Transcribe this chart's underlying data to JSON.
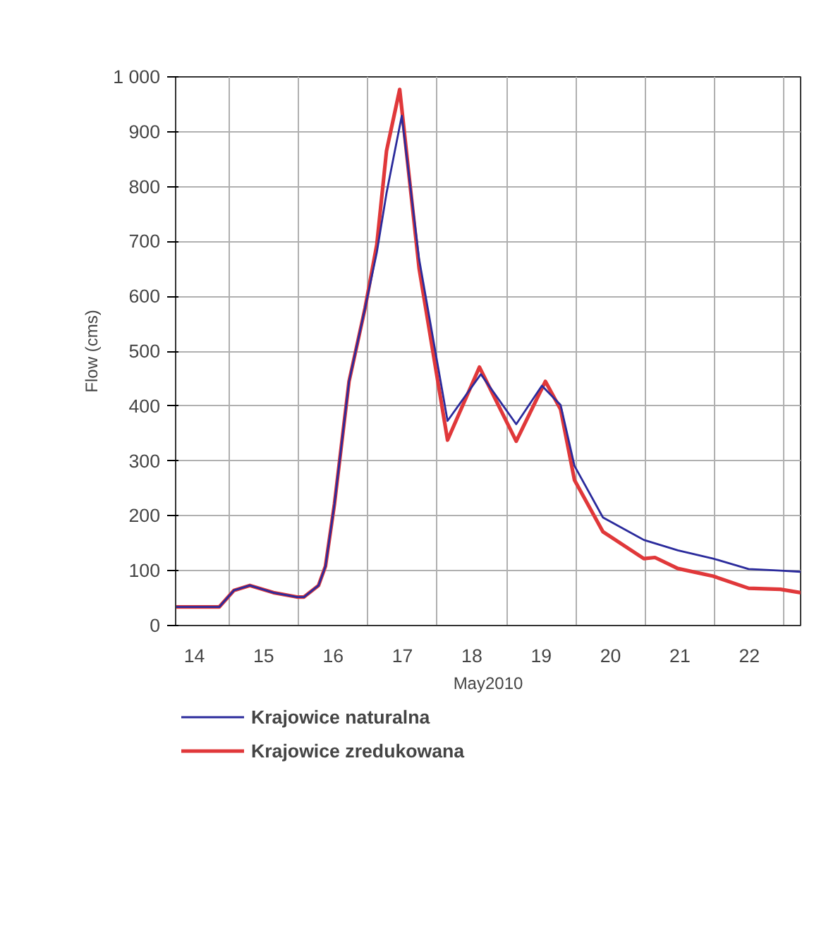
{
  "chart_data": {
    "type": "line",
    "xlabel": "May2010",
    "ylabel": "Flow (cms)",
    "xlim": [
      14.23,
      23.24
    ],
    "ylim": [
      0,
      1000
    ],
    "xticks": [
      {
        "value": 14.5,
        "label": "14"
      },
      {
        "value": 15,
        "label": null
      },
      {
        "value": 15.5,
        "label": "15"
      },
      {
        "value": 16,
        "label": null
      },
      {
        "value": 16.5,
        "label": "16"
      },
      {
        "value": 17,
        "label": null
      },
      {
        "value": 17.5,
        "label": "17"
      },
      {
        "value": 18,
        "label": null
      },
      {
        "value": 18.5,
        "label": "18"
      },
      {
        "value": 19,
        "label": null
      },
      {
        "value": 19.5,
        "label": "19"
      },
      {
        "value": 20,
        "label": null
      },
      {
        "value": 20.5,
        "label": "20"
      },
      {
        "value": 21,
        "label": null
      },
      {
        "value": 21.5,
        "label": "21"
      },
      {
        "value": 22,
        "label": null
      },
      {
        "value": 22.5,
        "label": "22"
      },
      {
        "value": 23,
        "label": null
      }
    ],
    "yticks": [
      0,
      100,
      200,
      300,
      400,
      500,
      600,
      700,
      800,
      900,
      {
        "value": 1000,
        "label": "1 000"
      }
    ],
    "grid": true,
    "legend": "bottom",
    "line_style": "solid",
    "series": [
      {
        "name": "Krajowice naturalna",
        "color": "#2b2b9c",
        "x": [
          14.23,
          14.86,
          15.07,
          15.3,
          15.64,
          15.98,
          16.08,
          16.29,
          16.39,
          16.52,
          16.73,
          16.96,
          17.13,
          17.27,
          17.49,
          17.74,
          18.15,
          18.63,
          19.14,
          19.51,
          19.78,
          19.98,
          20.39,
          20.98,
          21.47,
          21.98,
          22.49,
          22.95,
          23.24
        ],
        "values": [
          34,
          34,
          64,
          73,
          60,
          52,
          52,
          73,
          108,
          222,
          445,
          578,
          680,
          788,
          929,
          668,
          373,
          458,
          367,
          437,
          402,
          291,
          197,
          156,
          137,
          122,
          103,
          100,
          98
        ]
      },
      {
        "name": "Krajowice zredukowana",
        "color": "#e0383a",
        "x": [
          14.23,
          14.86,
          15.07,
          15.3,
          15.64,
          15.98,
          16.08,
          16.29,
          16.39,
          16.52,
          16.73,
          16.96,
          17.13,
          17.27,
          17.46,
          17.74,
          18.15,
          18.61,
          19.14,
          19.56,
          19.78,
          19.98,
          20.39,
          20.98,
          21.14,
          21.47,
          21.98,
          22.49,
          22.95,
          23.24
        ],
        "values": [
          34,
          34,
          64,
          73,
          60,
          52,
          52,
          73,
          108,
          222,
          445,
          578,
          694,
          865,
          977,
          651,
          338,
          471,
          336,
          445,
          394,
          265,
          171,
          122,
          124,
          104,
          90,
          68,
          66,
          60
        ]
      }
    ]
  }
}
